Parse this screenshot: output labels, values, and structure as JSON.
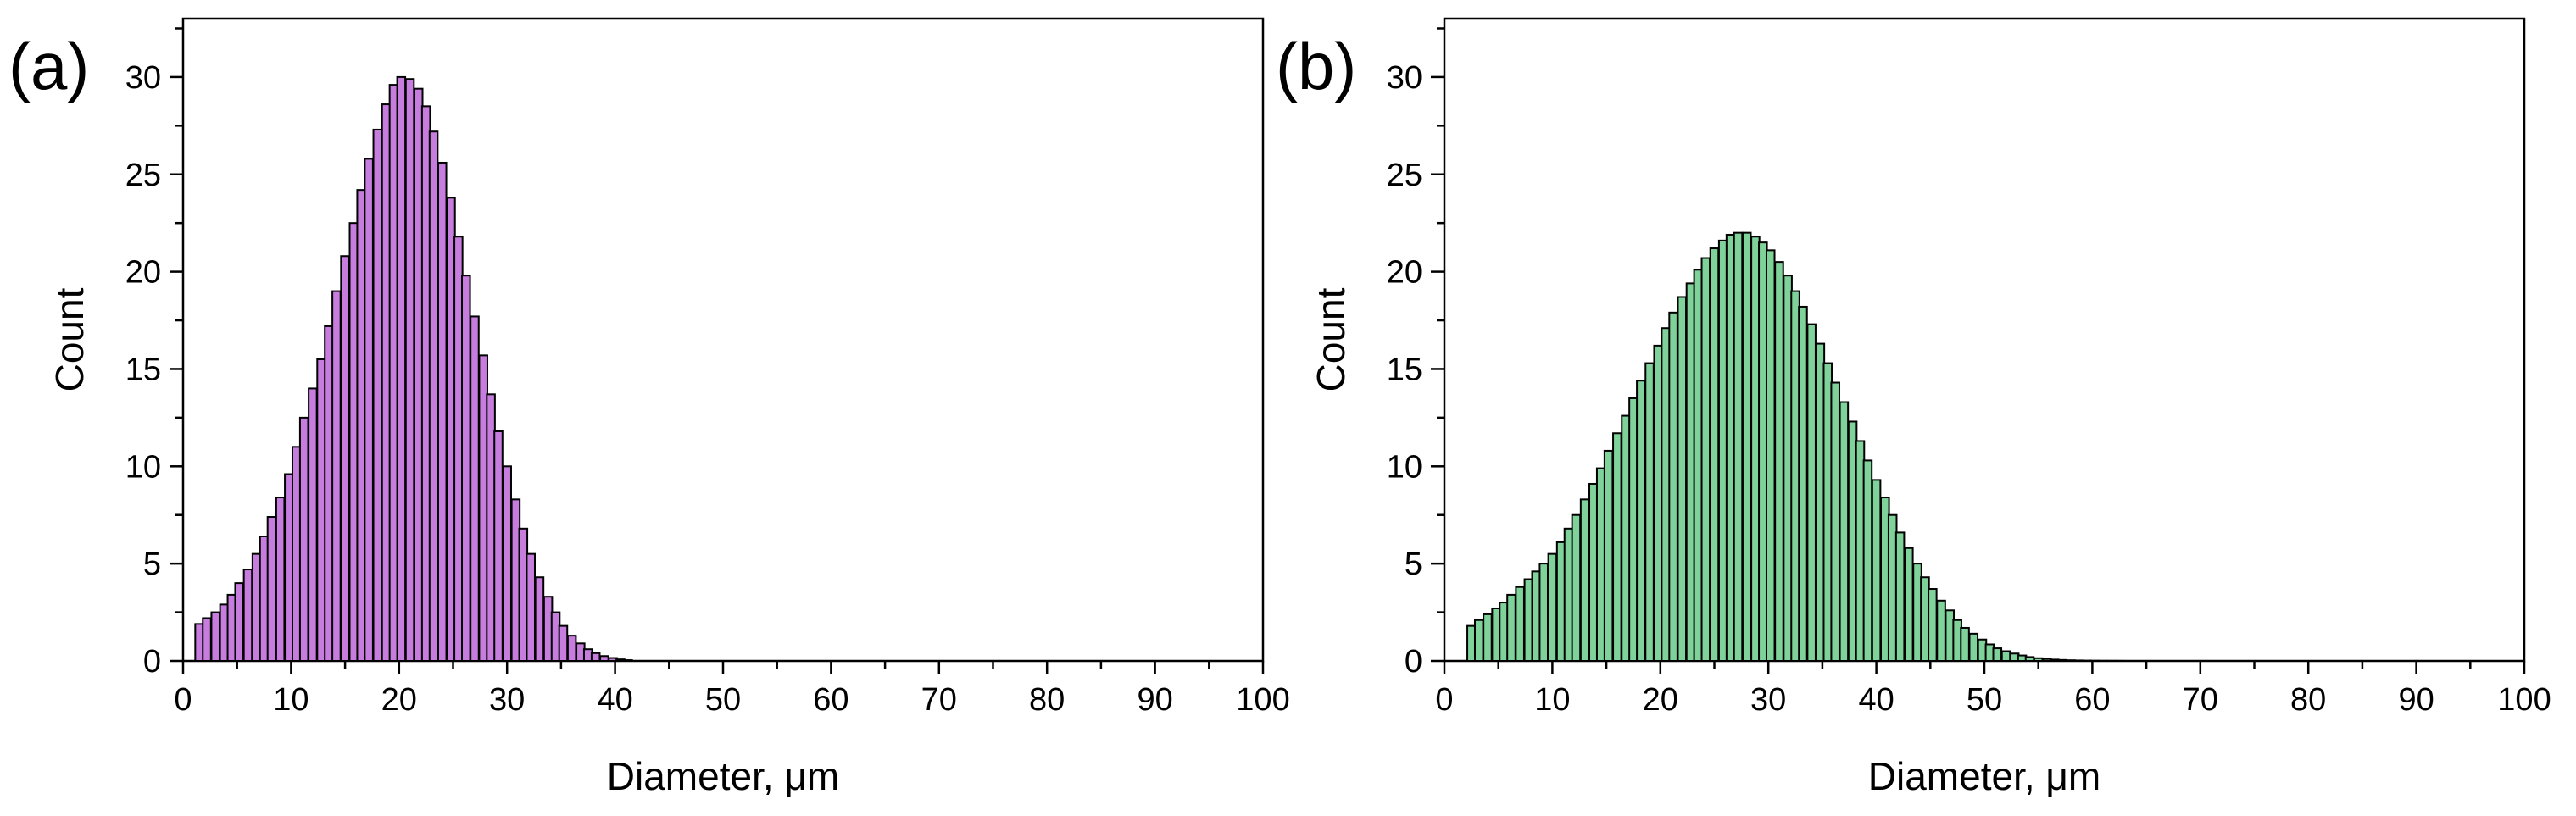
{
  "chart_data": [
    {
      "panel_label": "(a)",
      "type": "bar",
      "xlabel": "Diameter, μm",
      "ylabel": "Count",
      "xlim": [
        0,
        100
      ],
      "ylim": [
        0,
        33
      ],
      "xticks": [
        0,
        10,
        20,
        30,
        40,
        50,
        60,
        70,
        80,
        90,
        100
      ],
      "yticks": [
        0,
        5,
        10,
        15,
        20,
        25,
        30
      ],
      "bin_width": 0.75,
      "fill_color": "#c77dde",
      "edge_color": "#000000",
      "x": [
        1.5,
        2.2,
        3.0,
        3.8,
        4.5,
        5.2,
        6.0,
        6.8,
        7.5,
        8.2,
        9.0,
        9.8,
        10.5,
        11.2,
        12.0,
        12.8,
        13.5,
        14.2,
        15.0,
        15.8,
        16.5,
        17.2,
        18.0,
        18.8,
        19.5,
        20.2,
        21.0,
        21.8,
        22.5,
        23.2,
        24.0,
        24.8,
        25.5,
        26.2,
        27.0,
        27.8,
        28.5,
        29.2,
        30.0,
        30.8,
        31.5,
        32.2,
        33.0,
        33.8,
        34.5,
        35.2,
        36.0,
        36.8,
        37.5,
        38.2,
        39.0,
        39.8,
        40.5,
        41.2
      ],
      "values": [
        1.9,
        2.2,
        2.5,
        2.9,
        3.4,
        4.0,
        4.7,
        5.5,
        6.4,
        7.4,
        8.4,
        9.6,
        11.0,
        12.5,
        14.0,
        15.5,
        17.2,
        19.0,
        20.8,
        22.5,
        24.2,
        25.8,
        27.3,
        28.6,
        29.6,
        30.0,
        29.9,
        29.4,
        28.5,
        27.2,
        25.6,
        23.8,
        21.8,
        19.8,
        17.7,
        15.7,
        13.7,
        11.8,
        10.0,
        8.3,
        6.8,
        5.5,
        4.3,
        3.3,
        2.5,
        1.8,
        1.3,
        0.9,
        0.6,
        0.4,
        0.25,
        0.15,
        0.08,
        0.04
      ]
    },
    {
      "panel_label": "(b)",
      "type": "bar",
      "xlabel": "Diameter, μm",
      "ylabel": "Count",
      "xlim": [
        0,
        100
      ],
      "ylim": [
        0,
        33
      ],
      "xticks": [
        0,
        10,
        20,
        30,
        40,
        50,
        60,
        70,
        80,
        90,
        100
      ],
      "yticks": [
        0,
        5,
        10,
        15,
        20,
        25,
        30
      ],
      "bin_width": 0.75,
      "fill_color": "#7fd39a",
      "edge_color": "#000000",
      "x": [
        2.5,
        3.2,
        4.0,
        4.8,
        5.5,
        6.2,
        7.0,
        7.8,
        8.5,
        9.2,
        10.0,
        10.8,
        11.5,
        12.2,
        13.0,
        13.8,
        14.5,
        15.2,
        16.0,
        16.8,
        17.5,
        18.2,
        19.0,
        19.8,
        20.5,
        21.2,
        22.0,
        22.8,
        23.5,
        24.2,
        25.0,
        25.8,
        26.5,
        27.2,
        28.0,
        28.8,
        29.5,
        30.2,
        31.0,
        31.8,
        32.5,
        33.2,
        34.0,
        34.8,
        35.5,
        36.2,
        37.0,
        37.8,
        38.5,
        39.2,
        40.0,
        40.8,
        41.5,
        42.2,
        43.0,
        43.8,
        44.5,
        45.2,
        46.0,
        46.8,
        47.5,
        48.2,
        49.0,
        49.8,
        50.5,
        51.2,
        52.0,
        52.8,
        53.5,
        54.2,
        55.0,
        55.8,
        56.5,
        57.2,
        58.0,
        58.8,
        59.5,
        60.2,
        61.0,
        61.8,
        62.5
      ],
      "values": [
        1.8,
        2.1,
        2.4,
        2.7,
        3.0,
        3.4,
        3.8,
        4.2,
        4.6,
        5.0,
        5.5,
        6.1,
        6.8,
        7.5,
        8.3,
        9.1,
        9.9,
        10.8,
        11.7,
        12.6,
        13.5,
        14.4,
        15.3,
        16.2,
        17.1,
        17.9,
        18.7,
        19.4,
        20.1,
        20.7,
        21.2,
        21.6,
        21.9,
        22.0,
        22.0,
        21.8,
        21.5,
        21.1,
        20.5,
        19.8,
        19.0,
        18.2,
        17.3,
        16.3,
        15.3,
        14.3,
        13.3,
        12.3,
        11.3,
        10.3,
        9.3,
        8.4,
        7.5,
        6.6,
        5.8,
        5.0,
        4.3,
        3.7,
        3.1,
        2.6,
        2.1,
        1.7,
        1.4,
        1.1,
        0.85,
        0.65,
        0.5,
        0.38,
        0.28,
        0.2,
        0.14,
        0.1,
        0.07,
        0.05,
        0.035,
        0.025,
        0.015,
        0.01,
        0.007,
        0.005,
        0.003
      ]
    }
  ]
}
